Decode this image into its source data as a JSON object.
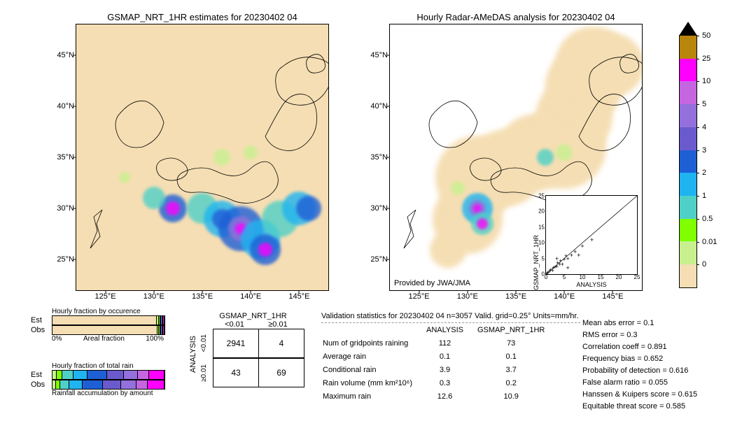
{
  "maps": {
    "left": {
      "title": "GSMAP_NRT_1HR estimates for 20230402 04",
      "x_ticks": [
        "125°E",
        "130°E",
        "135°E",
        "140°E",
        "145°E"
      ],
      "y_ticks": [
        "45°N",
        "40°N",
        "35°N",
        "30°N",
        "25°N"
      ],
      "lon_range": [
        122,
        148
      ],
      "lat_range": [
        22,
        48
      ],
      "ocean_color": "#f5deb3",
      "provided": ""
    },
    "right": {
      "title": "Hourly Radar-AMeDAS analysis for 20230402 04",
      "x_ticks": [
        "125°E",
        "130°E",
        "135°E",
        "140°E",
        "145°E"
      ],
      "y_ticks": [
        "45°N",
        "40°N",
        "35°N",
        "30°N",
        "25°N"
      ],
      "lon_range": [
        122,
        148
      ],
      "lat_range": [
        22,
        48
      ],
      "ocean_color": "#ffffff",
      "coverage_color": "#f5deb3",
      "provided": "Provided by JWA/JMA"
    }
  },
  "colorbar": {
    "labels": [
      "50",
      "25",
      "10",
      "5",
      "4",
      "3",
      "2",
      "1",
      "0.5",
      "0.01",
      "0"
    ],
    "colors": [
      "#b8860b",
      "#ff00ff",
      "#c566e0",
      "#9370db",
      "#6a5acd",
      "#1e5fd6",
      "#1fb4f0",
      "#4fd0c7",
      "#7fff00",
      "#c8f08f",
      "#f5deb3"
    ],
    "arrow_color": "#000000"
  },
  "fraction_bars": {
    "occurence": {
      "title": "Hourly fraction by occurence",
      "axis_label": "Areal fraction",
      "axis_left": "0%",
      "axis_right": "100%",
      "rows": [
        "Est",
        "Obs"
      ],
      "segs": {
        "Est": [
          {
            "c": "#f5deb3",
            "w": 93
          },
          {
            "c": "#c8f08f",
            "w": 2
          },
          {
            "c": "#7fff00",
            "w": 1
          },
          {
            "c": "#4fd0c7",
            "w": 1
          },
          {
            "c": "#1fb4f0",
            "w": 1
          },
          {
            "c": "#1e5fd6",
            "w": 1
          },
          {
            "c": "#ff00ff",
            "w": 1
          }
        ],
        "Obs": [
          {
            "c": "#f5deb3",
            "w": 94
          },
          {
            "c": "#c8f08f",
            "w": 1
          },
          {
            "c": "#7fff00",
            "w": 1
          },
          {
            "c": "#4fd0c7",
            "w": 1
          },
          {
            "c": "#1fb4f0",
            "w": 1
          },
          {
            "c": "#1e5fd6",
            "w": 1
          },
          {
            "c": "#ff00ff",
            "w": 1
          }
        ]
      }
    },
    "totalrain": {
      "title": "Hourly fraction of total rain",
      "footer": "Rainfall accumulation by amount",
      "rows": [
        "Est",
        "Obs"
      ],
      "segs": {
        "Est": [
          {
            "c": "#c8f08f",
            "w": 4
          },
          {
            "c": "#7fff00",
            "w": 5
          },
          {
            "c": "#4fd0c7",
            "w": 10
          },
          {
            "c": "#1fb4f0",
            "w": 12
          },
          {
            "c": "#1e5fd6",
            "w": 18
          },
          {
            "c": "#6a5acd",
            "w": 15
          },
          {
            "c": "#9370db",
            "w": 12
          },
          {
            "c": "#c566e0",
            "w": 10
          },
          {
            "c": "#ff00ff",
            "w": 14
          }
        ],
        "Obs": [
          {
            "c": "#c8f08f",
            "w": 3
          },
          {
            "c": "#7fff00",
            "w": 4
          },
          {
            "c": "#4fd0c7",
            "w": 8
          },
          {
            "c": "#1fb4f0",
            "w": 12
          },
          {
            "c": "#1e5fd6",
            "w": 18
          },
          {
            "c": "#6a5acd",
            "w": 16
          },
          {
            "c": "#9370db",
            "w": 14
          },
          {
            "c": "#c566e0",
            "w": 10
          },
          {
            "c": "#ff00ff",
            "w": 15
          }
        ]
      }
    }
  },
  "contingency": {
    "col_title": "GSMAP_NRT_1HR",
    "row_title": "ANALYSIS",
    "cols": [
      "<0.01",
      "≥0.01"
    ],
    "rows": [
      "<0.01",
      "≥0.01"
    ],
    "cells": [
      [
        "2941",
        "4"
      ],
      [
        "43",
        "69"
      ]
    ]
  },
  "validation": {
    "title": "Validation statistics for 20230402 04  n=3057 Valid. grid=0.25° Units=mm/hr.",
    "table_header": [
      "",
      "ANALYSIS",
      "GSMAP_NRT_1HR"
    ],
    "rows": [
      [
        "Num of gridpoints raining",
        "112",
        "73"
      ],
      [
        "Average rain",
        "0.1",
        "0.1"
      ],
      [
        "Conditional rain",
        "3.9",
        "3.7"
      ],
      [
        "Rain volume (mm km²10⁶)",
        "0.3",
        "0.2"
      ],
      [
        "Maximum rain",
        "12.6",
        "10.9"
      ]
    ],
    "scores": [
      "Mean abs error =   0.1",
      "RMS error =    0.3",
      "Correlation coeff =  0.891",
      "Frequency bias =  0.652",
      "Probability of detection =  0.616",
      "False alarm ratio =  0.055",
      "Hanssen & Kuipers score =  0.615",
      "Equitable threat score =  0.585"
    ]
  },
  "inset": {
    "xlabel": "ANALYSIS",
    "ylabel": "GSMAP_NRT_1HR",
    "ticks": [
      "0",
      "5",
      "10",
      "15",
      "20",
      "25"
    ],
    "lim": [
      0,
      25
    ]
  },
  "rain_blobs_left": [
    {
      "lon": 132,
      "lat": 30,
      "r": 20,
      "c": "#1e5fd6"
    },
    {
      "lon": 132,
      "lat": 30,
      "r": 10,
      "c": "#ff00ff"
    },
    {
      "lon": 135,
      "lat": 30,
      "r": 22,
      "c": "#4fd0c7"
    },
    {
      "lon": 137,
      "lat": 29,
      "r": 26,
      "c": "#1fb4f0"
    },
    {
      "lon": 137,
      "lat": 29,
      "r": 14,
      "c": "#1e5fd6"
    },
    {
      "lon": 139,
      "lat": 28,
      "r": 32,
      "c": "#1e5fd6"
    },
    {
      "lon": 139,
      "lat": 28,
      "r": 18,
      "c": "#9370db"
    },
    {
      "lon": 139,
      "lat": 28,
      "r": 8,
      "c": "#ff00ff"
    },
    {
      "lon": 141,
      "lat": 27,
      "r": 28,
      "c": "#1fb4f0"
    },
    {
      "lon": 141.5,
      "lat": 26,
      "r": 22,
      "c": "#1e5fd6"
    },
    {
      "lon": 141.5,
      "lat": 26,
      "r": 10,
      "c": "#ff00ff"
    },
    {
      "lon": 143,
      "lat": 29,
      "r": 26,
      "c": "#4fd0c7"
    },
    {
      "lon": 145,
      "lat": 30,
      "r": 24,
      "c": "#1fb4f0"
    },
    {
      "lon": 146,
      "lat": 30,
      "r": 18,
      "c": "#1e5fd6"
    },
    {
      "lon": 130,
      "lat": 31,
      "r": 16,
      "c": "#4fd0c7"
    },
    {
      "lon": 127,
      "lat": 33,
      "r": 8,
      "c": "#c8f08f"
    },
    {
      "lon": 137,
      "lat": 35,
      "r": 12,
      "c": "#c8f08f"
    },
    {
      "lon": 140,
      "lat": 35.5,
      "r": 10,
      "c": "#c8f08f"
    }
  ],
  "rain_blobs_right": [
    {
      "lon": 131,
      "lat": 30,
      "r": 22,
      "c": "#1fb4f0"
    },
    {
      "lon": 131,
      "lat": 30,
      "r": 12,
      "c": "#9370db"
    },
    {
      "lon": 131,
      "lat": 30,
      "r": 6,
      "c": "#ff00ff"
    },
    {
      "lon": 131.5,
      "lat": 28.5,
      "r": 16,
      "c": "#4fd0c7"
    },
    {
      "lon": 131.5,
      "lat": 28.5,
      "r": 8,
      "c": "#ff00ff"
    },
    {
      "lon": 129,
      "lat": 32,
      "r": 10,
      "c": "#c8f08f"
    },
    {
      "lon": 138,
      "lat": 35,
      "r": 12,
      "c": "#4fd0c7"
    },
    {
      "lon": 140,
      "lat": 35.5,
      "r": 12,
      "c": "#c8f08f"
    }
  ],
  "coverage_blobs": [
    {
      "lon": 128,
      "lat": 26,
      "r": 26
    },
    {
      "lon": 130,
      "lat": 29,
      "r": 50
    },
    {
      "lon": 131,
      "lat": 33,
      "r": 60
    },
    {
      "lon": 134,
      "lat": 34,
      "r": 55
    },
    {
      "lon": 137,
      "lat": 35.5,
      "r": 55
    },
    {
      "lon": 140,
      "lat": 36,
      "r": 60
    },
    {
      "lon": 141,
      "lat": 39,
      "r": 55
    },
    {
      "lon": 142,
      "lat": 42,
      "r": 55
    },
    {
      "lon": 143,
      "lat": 44,
      "r": 55
    },
    {
      "lon": 145,
      "lat": 44,
      "r": 45
    }
  ],
  "scatter_points": [
    [
      0.3,
      0.2
    ],
    [
      0.5,
      0.4
    ],
    [
      1,
      0.8
    ],
    [
      1.2,
      1.4
    ],
    [
      1.8,
      1.2
    ],
    [
      2,
      2.1
    ],
    [
      2.5,
      2.2
    ],
    [
      3,
      2.5
    ],
    [
      3.2,
      3.5
    ],
    [
      3.8,
      3.1
    ],
    [
      4,
      4.2
    ],
    [
      4.5,
      3.2
    ],
    [
      5,
      4.8
    ],
    [
      5.5,
      5.7
    ],
    [
      6,
      4.9
    ],
    [
      7,
      6.1
    ],
    [
      8,
      7.2
    ],
    [
      9,
      6.0
    ],
    [
      10,
      9.0
    ],
    [
      12.6,
      10.9
    ],
    [
      6,
      2
    ],
    [
      3,
      5
    ]
  ]
}
